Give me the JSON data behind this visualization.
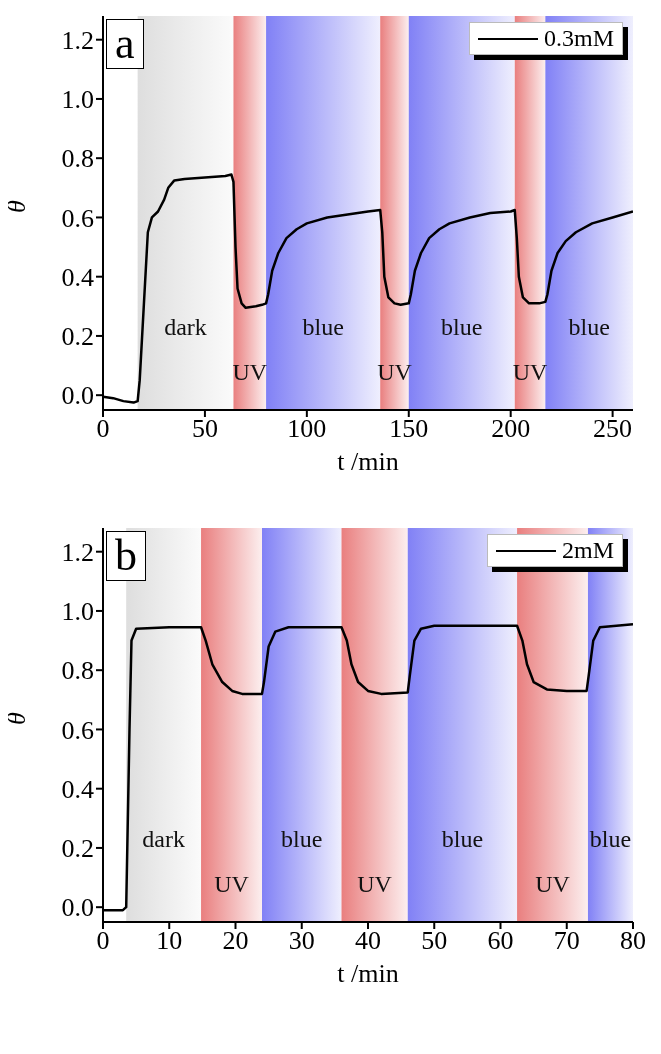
{
  "chart_data": [
    {
      "type": "line",
      "title": "a",
      "xlabel": "t /min",
      "ylabel": "θ",
      "xlim": [
        0,
        260
      ],
      "xticks": [
        0,
        50,
        100,
        150,
        200,
        250
      ],
      "ylim": [
        -0.05,
        1.28
      ],
      "yticks": [
        {
          "value": 0,
          "label": "0.0"
        },
        {
          "value": 0.2,
          "label": "0.2"
        },
        {
          "value": 0.4,
          "label": "0.4"
        },
        {
          "value": 0.6,
          "label": "0.6"
        },
        {
          "value": 0.8,
          "label": "0.8"
        },
        {
          "value": 1.0,
          "label": "1.0"
        },
        {
          "value": 1.2,
          "label": "1.2"
        }
      ],
      "legend": "top right",
      "marker": "none",
      "line_style": "solid",
      "grid": false,
      "bands": [
        {
          "axis": "x",
          "from": 17,
          "to": 64,
          "label": "dark",
          "color": "#dcdcdc"
        },
        {
          "axis": "x",
          "from": 64,
          "to": 80,
          "label": "UV",
          "color": "#e87878"
        },
        {
          "axis": "x",
          "from": 80,
          "to": 136,
          "label": "blue",
          "color": "#7a7af5"
        },
        {
          "axis": "x",
          "from": 136,
          "to": 150,
          "label": "UV",
          "color": "#e87878"
        },
        {
          "axis": "x",
          "from": 150,
          "to": 202,
          "label": "blue",
          "color": "#7a7af5"
        },
        {
          "axis": "x",
          "from": 202,
          "to": 217,
          "label": "UV",
          "color": "#e87878"
        },
        {
          "axis": "x",
          "from": 217,
          "to": 260,
          "label": "blue",
          "color": "#7a7af5"
        }
      ],
      "series": [
        {
          "name": "0.3mM",
          "color": "#000000",
          "x": [
            0,
            5,
            10,
            15,
            17,
            18,
            20,
            22,
            24,
            27,
            30,
            32,
            35,
            40,
            50,
            60,
            63,
            64,
            65,
            66,
            68,
            70,
            75,
            78,
            80,
            81,
            83,
            86,
            90,
            95,
            100,
            110,
            120,
            130,
            136,
            137,
            138,
            140,
            143,
            146,
            150,
            151,
            153,
            156,
            160,
            165,
            170,
            180,
            190,
            200,
            202,
            203,
            204,
            206,
            209,
            214,
            217,
            218,
            220,
            223,
            227,
            232,
            240,
            250,
            260
          ],
          "values": [
            -0.005,
            -0.01,
            -0.02,
            -0.025,
            -0.02,
            0.05,
            0.3,
            0.55,
            0.6,
            0.62,
            0.66,
            0.7,
            0.725,
            0.73,
            0.735,
            0.74,
            0.745,
            0.72,
            0.5,
            0.36,
            0.31,
            0.295,
            0.3,
            0.305,
            0.31,
            0.34,
            0.42,
            0.48,
            0.53,
            0.56,
            0.58,
            0.6,
            0.61,
            0.62,
            0.625,
            0.55,
            0.4,
            0.33,
            0.31,
            0.305,
            0.31,
            0.34,
            0.42,
            0.48,
            0.53,
            0.56,
            0.58,
            0.6,
            0.615,
            0.62,
            0.625,
            0.53,
            0.4,
            0.33,
            0.31,
            0.31,
            0.315,
            0.34,
            0.42,
            0.48,
            0.52,
            0.55,
            0.58,
            0.6,
            0.62
          ]
        }
      ]
    },
    {
      "type": "line",
      "title": "b",
      "xlabel": "t /min",
      "ylabel": "θ",
      "xlim": [
        0,
        80
      ],
      "xticks": [
        0,
        10,
        20,
        30,
        40,
        50,
        60,
        70,
        80
      ],
      "ylim": [
        -0.05,
        1.28
      ],
      "yticks": [
        {
          "value": 0,
          "label": "0.0"
        },
        {
          "value": 0.2,
          "label": "0.2"
        },
        {
          "value": 0.4,
          "label": "0.4"
        },
        {
          "value": 0.6,
          "label": "0.6"
        },
        {
          "value": 0.8,
          "label": "0.8"
        },
        {
          "value": 1.0,
          "label": "1.0"
        },
        {
          "value": 1.2,
          "label": "1.2"
        }
      ],
      "legend": "top right",
      "marker": "none",
      "line_style": "solid",
      "grid": false,
      "bands": [
        {
          "axis": "x",
          "from": 3.5,
          "to": 14.8,
          "label": "dark",
          "color": "#dcdcdc"
        },
        {
          "axis": "x",
          "from": 14.8,
          "to": 24,
          "label": "UV",
          "color": "#e87878"
        },
        {
          "axis": "x",
          "from": 24,
          "to": 36,
          "label": "blue",
          "color": "#7a7af5"
        },
        {
          "axis": "x",
          "from": 36,
          "to": 46,
          "label": "UV",
          "color": "#e87878"
        },
        {
          "axis": "x",
          "from": 46,
          "to": 62.5,
          "label": "blue",
          "color": "#7a7af5"
        },
        {
          "axis": "x",
          "from": 62.5,
          "to": 73.2,
          "label": "UV",
          "color": "#e87878"
        },
        {
          "axis": "x",
          "from": 73.2,
          "to": 80,
          "label": "blue",
          "color": "#7a7af5"
        }
      ],
      "series": [
        {
          "name": "2mM",
          "color": "#000000",
          "x": [
            0,
            3,
            3.5,
            4,
            4.3,
            5,
            10,
            14.8,
            15.5,
            16.5,
            18,
            19.5,
            21,
            24,
            24.3,
            25,
            26,
            28,
            36,
            36.8,
            37.5,
            38.5,
            40,
            42,
            46,
            46.3,
            47,
            48,
            50,
            62.5,
            63.3,
            64,
            65,
            67,
            70,
            73,
            73.3,
            74,
            75,
            80
          ],
          "values": [
            -0.01,
            -0.01,
            0,
            0.6,
            0.9,
            0.94,
            0.945,
            0.945,
            0.9,
            0.82,
            0.76,
            0.73,
            0.72,
            0.72,
            0.76,
            0.88,
            0.93,
            0.945,
            0.945,
            0.9,
            0.82,
            0.76,
            0.73,
            0.72,
            0.725,
            0.78,
            0.9,
            0.94,
            0.95,
            0.95,
            0.9,
            0.82,
            0.76,
            0.735,
            0.73,
            0.73,
            0.78,
            0.9,
            0.945,
            0.955
          ]
        }
      ]
    }
  ]
}
